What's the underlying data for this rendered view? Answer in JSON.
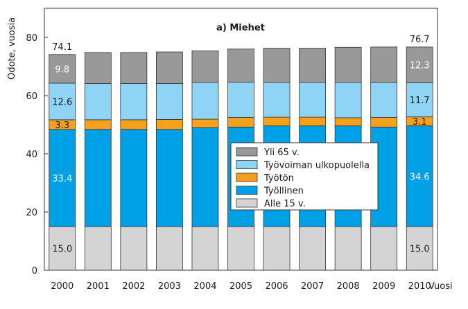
{
  "chart_data": {
    "type": "bar",
    "stacked": true,
    "title": "a) Miehet",
    "ylabel": "Odote, vuosia",
    "xlabel": "Vuosi",
    "ylim": [
      0,
      90
    ],
    "yticks": [
      0,
      20,
      40,
      60,
      80
    ],
    "categories": [
      "2000",
      "2001",
      "2002",
      "2003",
      "2004",
      "2005",
      "2006",
      "2007",
      "2008",
      "2009",
      "2010"
    ],
    "series": [
      {
        "name": "Alle 15 v.",
        "color": "#d4d4d4",
        "values": [
          15.0,
          15.0,
          15.0,
          15.0,
          15.0,
          15.0,
          15.0,
          15.0,
          15.0,
          15.0,
          15.0
        ]
      },
      {
        "name": "Työllinen",
        "color": "#00a0e6",
        "values": [
          33.4,
          33.4,
          33.4,
          33.4,
          34.0,
          34.2,
          34.6,
          34.6,
          34.6,
          34.2,
          34.6
        ]
      },
      {
        "name": "Työtön",
        "color": "#f5a11e",
        "values": [
          3.3,
          3.3,
          3.3,
          3.4,
          2.9,
          3.3,
          3.0,
          3.0,
          2.8,
          3.3,
          3.1
        ]
      },
      {
        "name": "Työvoiman ulkopuolella",
        "color": "#8fd3f5",
        "values": [
          12.6,
          12.5,
          12.5,
          12.4,
          12.6,
          12.1,
          11.9,
          11.9,
          12.1,
          12.0,
          11.7
        ]
      },
      {
        "name": "Yli 65 v.",
        "color": "#999999",
        "values": [
          9.8,
          10.6,
          10.6,
          10.8,
          10.9,
          11.4,
          11.8,
          11.8,
          12.1,
          12.2,
          12.3
        ]
      }
    ],
    "totals": [
      {
        "category": "2000",
        "label": "74.1"
      },
      {
        "category": "2010",
        "label": "76.7"
      }
    ],
    "data_labels": [
      {
        "category": "2000",
        "series": "Alle 15 v.",
        "label": "15.0"
      },
      {
        "category": "2000",
        "series": "Työllinen",
        "label": "33.4"
      },
      {
        "category": "2000",
        "series": "Työtön",
        "label": "3.3"
      },
      {
        "category": "2000",
        "series": "Työvoiman ulkopuolella",
        "label": "12.6"
      },
      {
        "category": "2000",
        "series": "Yli 65 v.",
        "label": "9.8"
      },
      {
        "category": "2010",
        "series": "Alle 15 v.",
        "label": "15.0"
      },
      {
        "category": "2010",
        "series": "Työllinen",
        "label": "34.6"
      },
      {
        "category": "2010",
        "series": "Työtön",
        "label": "3.1"
      },
      {
        "category": "2010",
        "series": "Työvoiman ulkopuolella",
        "label": "11.7"
      },
      {
        "category": "2010",
        "series": "Yli 65 v.",
        "label": "12.3"
      }
    ],
    "legend": {
      "placement": "center-right",
      "order": [
        "Yli 65 v.",
        "Työvoiman ulkopuolella",
        "Työtön",
        "Työllinen",
        "Alle 15 v."
      ]
    }
  }
}
